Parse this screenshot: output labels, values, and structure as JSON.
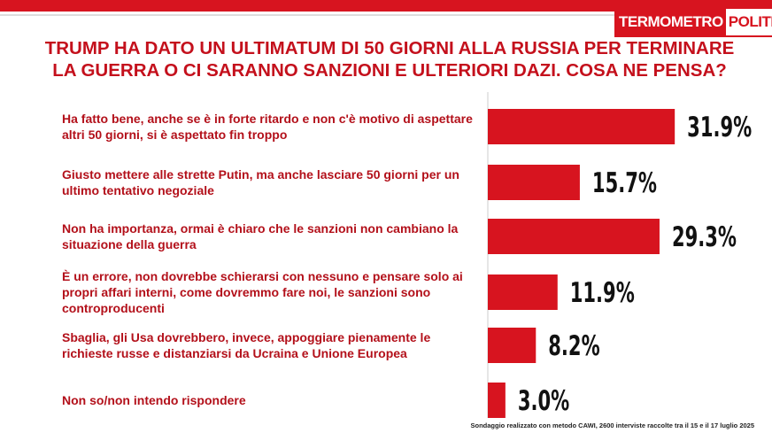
{
  "brand": {
    "part1": "TERMOMETRO",
    "part2": "POLITICO"
  },
  "chart_data": {
    "type": "bar",
    "orientation": "horizontal",
    "title": "TRUMP HA DATO UN ULTIMATUM DI 50 GIORNI ALLA RUSSIA PER TERMINARE LA GUERRA O CI SARANNO SANZIONI E ULTERIORI DAZI. COSA NE PENSA?",
    "categories": [
      "Ha fatto bene, anche se è in forte ritardo e non c'è motivo di aspettare altri 50 giorni, si è aspettato fin troppo",
      "Giusto mettere alle strette Putin, ma anche lasciare 50 giorni per un ultimo tentativo negoziale",
      "Non ha importanza, ormai è chiaro che le sanzioni non cambiano la situazione della guerra",
      "È un errore, non dovrebbe schierarsi con nessuno e pensare solo ai propri affari interni, come dovremmo fare noi, le sanzioni sono controproducenti",
      "Sbaglia, gli Usa dovrebbero, invece, appoggiare pienamente le richieste russe e distanziarsi da Ucraina e Unione Europea",
      "Non so/non intendo rispondere"
    ],
    "values": [
      31.9,
      15.7,
      29.3,
      11.9,
      8.2,
      3.0
    ],
    "value_labels": [
      "31.9%",
      "15.7%",
      "29.3%",
      "11.9%",
      "8.2%",
      "3.0%"
    ],
    "color": "#d7141f",
    "footnote": "Sondaggio realizzato con metodo CAWI, 2600 interviste raccolte tra il 15 e il 17 luglio 2025"
  }
}
